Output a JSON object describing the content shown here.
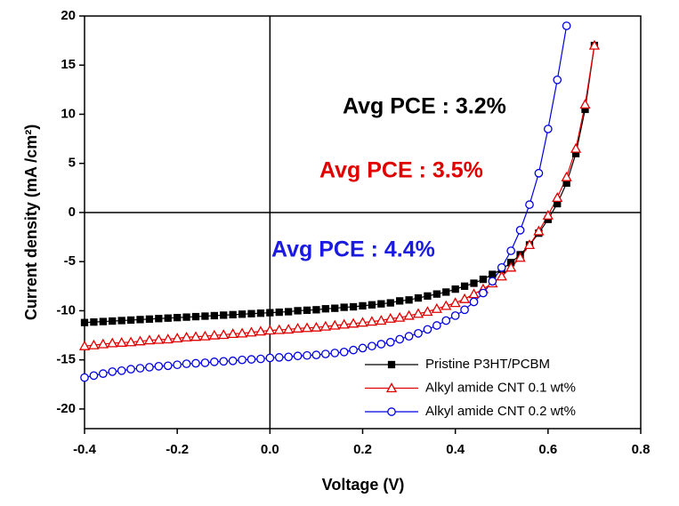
{
  "chart_data": {
    "type": "line",
    "x_label": "Voltage (V)",
    "y_label": "Current density (mA /cm²)",
    "xlim": [
      -0.4,
      0.8
    ],
    "ylim": [
      -22,
      20
    ],
    "xticks": [
      -0.4,
      -0.2,
      {
        "value": 0,
        "label": "0.0"
      },
      0.2,
      0.4,
      0.6,
      0.8
    ],
    "yticks": [
      20,
      15,
      10,
      5,
      0,
      -5,
      -10,
      -15,
      -20
    ],
    "x": [
      -0.4,
      -0.38,
      -0.36,
      -0.34,
      -0.32,
      -0.3,
      -0.28,
      -0.26,
      -0.24,
      -0.22,
      -0.2,
      -0.18,
      -0.16,
      -0.14,
      -0.12,
      -0.1,
      -0.08,
      -0.06,
      -0.04,
      -0.02,
      0,
      0.02,
      0.04,
      0.06,
      0.08,
      0.1,
      0.12,
      0.14,
      0.16,
      0.18,
      0.2,
      0.22,
      0.24,
      0.26,
      0.28,
      0.3,
      0.32,
      0.34,
      0.36,
      0.38,
      0.4,
      0.42,
      0.44,
      0.46,
      0.48,
      0.5,
      0.52,
      0.54,
      0.56,
      0.58,
      0.6,
      0.62,
      0.64,
      0.66,
      0.68,
      0.7
    ],
    "series": [
      {
        "name": "Pristine P3HT/PCBM",
        "color": "#000000",
        "marker": "square",
        "values": [
          -11.2,
          -11.15,
          -11.1,
          -11.05,
          -11.0,
          -10.95,
          -10.9,
          -10.85,
          -10.8,
          -10.75,
          -10.7,
          -10.65,
          -10.6,
          -10.55,
          -10.5,
          -10.45,
          -10.4,
          -10.35,
          -10.3,
          -10.25,
          -10.2,
          -10.15,
          -10.1,
          -10.0,
          -9.95,
          -9.9,
          -9.8,
          -9.75,
          -9.65,
          -9.6,
          -9.5,
          -9.4,
          -9.3,
          -9.2,
          -9.0,
          -8.9,
          -8.7,
          -8.5,
          -8.3,
          -8.1,
          -7.8,
          -7.5,
          -7.2,
          -6.8,
          -6.3,
          -5.8,
          -5.1,
          -4.3,
          -3.3,
          -2.1,
          -0.7,
          0.9,
          3.0,
          6.0,
          10.5,
          17.0
        ]
      },
      {
        "name": "Alkyl amide CNT 0.1 wt%",
        "color": "#e00000",
        "marker": "triangle",
        "values": [
          -13.6,
          -13.5,
          -13.4,
          -13.3,
          -13.25,
          -13.2,
          -13.1,
          -13.0,
          -12.95,
          -12.9,
          -12.8,
          -12.7,
          -12.65,
          -12.6,
          -12.5,
          -12.45,
          -12.35,
          -12.3,
          -12.2,
          -12.1,
          -12.0,
          -11.95,
          -11.9,
          -11.8,
          -11.75,
          -11.7,
          -11.6,
          -11.5,
          -11.4,
          -11.3,
          -11.2,
          -11.1,
          -11.0,
          -10.8,
          -10.7,
          -10.5,
          -10.3,
          -10.1,
          -9.8,
          -9.5,
          -9.2,
          -8.8,
          -8.3,
          -7.8,
          -7.2,
          -6.5,
          -5.6,
          -4.6,
          -3.3,
          -1.9,
          -0.3,
          1.5,
          3.6,
          6.5,
          11.0,
          17.0
        ]
      },
      {
        "name": "Alkyl amide CNT 0.2 wt%",
        "color": "#0000e0",
        "marker": "circle",
        "values": [
          -16.8,
          -16.6,
          -16.4,
          -16.2,
          -16.1,
          -15.95,
          -15.85,
          -15.75,
          -15.65,
          -15.6,
          -15.5,
          -15.4,
          -15.35,
          -15.3,
          -15.2,
          -15.15,
          -15.1,
          -15.0,
          -14.95,
          -14.9,
          -14.8,
          -14.75,
          -14.7,
          -14.6,
          -14.55,
          -14.5,
          -14.4,
          -14.3,
          -14.2,
          -14.0,
          -13.8,
          -13.6,
          -13.4,
          -13.2,
          -12.9,
          -12.6,
          -12.3,
          -11.9,
          -11.5,
          -11.0,
          -10.5,
          -9.9,
          -9.1,
          -8.2,
          -7.0,
          -5.6,
          -3.9,
          -1.8,
          0.8,
          4.0,
          8.5,
          13.5,
          19.0,
          null,
          null,
          null
        ]
      }
    ],
    "annotations": [
      {
        "text": "Avg PCE : 3.2%",
        "color": "#000000"
      },
      {
        "text": "Avg PCE : 3.5%",
        "color": "#e00000"
      },
      {
        "text": "Avg PCE : 4.4%",
        "color": "#1a1ae0"
      }
    ]
  }
}
